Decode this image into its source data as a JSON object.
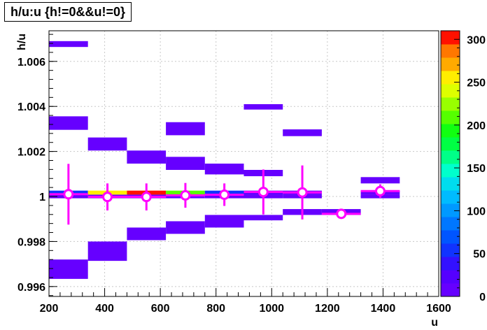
{
  "chart_data": {
    "type": "heatmap",
    "title": "h/u:u {h!=0&&u!=0}",
    "xlabel": "u",
    "ylabel": "h/u",
    "xlim": [
      200,
      1600
    ],
    "ylim": [
      0.99556,
      1.00736
    ],
    "x_ticks": [
      200,
      400,
      600,
      800,
      1000,
      1200,
      1400,
      1600
    ],
    "y_ticks": [
      0.996,
      0.998,
      1,
      1.002,
      1.004,
      1.006
    ],
    "y_tick_labels": [
      "0.996",
      "0.998",
      "1",
      "1.002",
      "1.004",
      "1.006"
    ],
    "grid": true,
    "colorbar": {
      "range": [
        0,
        310
      ],
      "ticks": [
        0,
        50,
        100,
        150,
        200,
        250,
        300
      ]
    },
    "x_bin_edges": [
      200,
      340,
      480,
      620,
      760,
      900,
      1040,
      1180,
      1320,
      1460,
      1600
    ],
    "cells": [
      {
        "x": [
          200,
          340
        ],
        "y": [
          1.00664,
          1.0069
        ],
        "count": 2
      },
      {
        "x": [
          200,
          340
        ],
        "y": [
          1.00296,
          1.00356
        ],
        "count": 3
      },
      {
        "x": [
          200,
          340
        ],
        "y": [
          1.00008,
          1.00026
        ],
        "count": 60
      },
      {
        "x": [
          200,
          340
        ],
        "y": [
          0.99992,
          1.00008
        ],
        "count": 6
      },
      {
        "x": [
          200,
          340
        ],
        "y": [
          0.99634,
          0.9972
        ],
        "count": 4
      },
      {
        "x": [
          340,
          480
        ],
        "y": [
          1.00204,
          1.00262
        ],
        "count": 3
      },
      {
        "x": [
          340,
          480
        ],
        "y": [
          1.00008,
          1.00026
        ],
        "count": 250
      },
      {
        "x": [
          340,
          480
        ],
        "y": [
          0.99992,
          1.00008
        ],
        "count": 6
      },
      {
        "x": [
          340,
          480
        ],
        "y": [
          0.99714,
          0.998
        ],
        "count": 4
      },
      {
        "x": [
          480,
          620
        ],
        "y": [
          1.00146,
          1.00204
        ],
        "count": 4
      },
      {
        "x": [
          480,
          620
        ],
        "y": [
          1.00008,
          1.00026
        ],
        "count": 300
      },
      {
        "x": [
          480,
          620
        ],
        "y": [
          0.99992,
          1.00008
        ],
        "count": 6
      },
      {
        "x": [
          480,
          620
        ],
        "y": [
          0.99806,
          0.99862
        ],
        "count": 4
      },
      {
        "x": [
          620,
          760
        ],
        "y": [
          1.00272,
          1.0033
        ],
        "count": 3
      },
      {
        "x": [
          620,
          760
        ],
        "y": [
          1.00118,
          1.00176
        ],
        "count": 4
      },
      {
        "x": [
          620,
          760
        ],
        "y": [
          1.00008,
          1.00026
        ],
        "count": 210
      },
      {
        "x": [
          620,
          760
        ],
        "y": [
          0.99992,
          1.00008
        ],
        "count": 6
      },
      {
        "x": [
          620,
          760
        ],
        "y": [
          0.99834,
          0.9989
        ],
        "count": 4
      },
      {
        "x": [
          760,
          900
        ],
        "y": [
          1.00098,
          1.00146
        ],
        "count": 4
      },
      {
        "x": [
          760,
          900
        ],
        "y": [
          1.00008,
          1.00026
        ],
        "count": 50
      },
      {
        "x": [
          760,
          900
        ],
        "y": [
          0.99992,
          1.00008
        ],
        "count": 6
      },
      {
        "x": [
          760,
          900
        ],
        "y": [
          0.99862,
          0.99918
        ],
        "count": 4
      },
      {
        "x": [
          900,
          1040
        ],
        "y": [
          1.00386,
          1.0041
        ],
        "count": 2
      },
      {
        "x": [
          900,
          1040
        ],
        "y": [
          1.0009,
          1.00118
        ],
        "count": 3
      },
      {
        "x": [
          900,
          1040
        ],
        "y": [
          1.00008,
          1.00026
        ],
        "count": 20
      },
      {
        "x": [
          900,
          1040
        ],
        "y": [
          0.99992,
          1.00008
        ],
        "count": 5
      },
      {
        "x": [
          900,
          1040
        ],
        "y": [
          0.99894,
          0.99918
        ],
        "count": 3
      },
      {
        "x": [
          1040,
          1180
        ],
        "y": [
          1.00268,
          1.00298
        ],
        "count": 3
      },
      {
        "x": [
          1040,
          1180
        ],
        "y": [
          1.00008,
          1.00026
        ],
        "count": 10
      },
      {
        "x": [
          1040,
          1180
        ],
        "y": [
          0.99992,
          1.00008
        ],
        "count": 5
      },
      {
        "x": [
          1040,
          1180
        ],
        "y": [
          0.99918,
          0.99944
        ],
        "count": 3
      },
      {
        "x": [
          1180,
          1320
        ],
        "y": [
          0.99918,
          0.99944
        ],
        "count": 3
      },
      {
        "x": [
          1320,
          1460
        ],
        "y": [
          1.00058,
          1.00086
        ],
        "count": 3
      },
      {
        "x": [
          1320,
          1460
        ],
        "y": [
          1.00008,
          1.00026
        ],
        "count": 6
      },
      {
        "x": [
          1320,
          1460
        ],
        "y": [
          0.99992,
          1.00008
        ],
        "count": 5
      }
    ],
    "profile": [
      {
        "x": 270,
        "y": 1.0001,
        "err": 0.00135
      },
      {
        "x": 410,
        "y": 0.99998,
        "err": 0.0006
      },
      {
        "x": 550,
        "y": 0.99998,
        "err": 0.0006
      },
      {
        "x": 690,
        "y": 1.00005,
        "err": 0.00055
      },
      {
        "x": 830,
        "y": 1.00008,
        "err": 0.0005
      },
      {
        "x": 970,
        "y": 1.0002,
        "err": 0.001
      },
      {
        "x": 1110,
        "y": 1.00018,
        "err": 0.0012
      },
      {
        "x": 1250,
        "y": 0.99923,
        "err": 0.0001
      },
      {
        "x": 1390,
        "y": 1.00024,
        "err": 0.0003
      }
    ]
  }
}
